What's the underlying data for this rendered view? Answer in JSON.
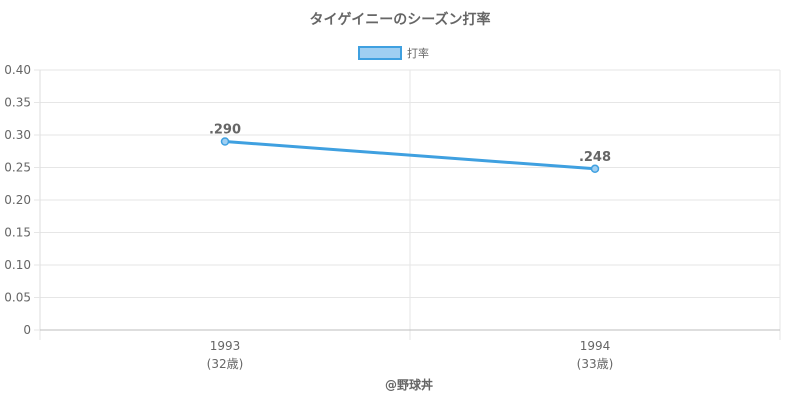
{
  "chart_data": {
    "type": "line",
    "title": "タイゲイニーのシーズン打率",
    "categories": [
      "1993",
      "1994"
    ],
    "category_sublabels": [
      "(32歳)",
      "(33歳)"
    ],
    "series": [
      {
        "name": "打率",
        "values": [
          0.29,
          0.248
        ],
        "data_labels": [
          ".290",
          ".248"
        ],
        "color": "#3fa0e0",
        "fill_color": "#a0cff2"
      }
    ],
    "ylim": [
      0,
      0.4
    ],
    "y_ticks": [
      "0",
      "0.05",
      "0.10",
      "0.15",
      "0.20",
      "0.25",
      "0.30",
      "0.35",
      "0.40"
    ],
    "y_tick_values": [
      0,
      0.05,
      0.1,
      0.15,
      0.2,
      0.25,
      0.3,
      0.35,
      0.4
    ],
    "grid": true,
    "legend_position": "top-center",
    "credit": "@野球丼"
  }
}
